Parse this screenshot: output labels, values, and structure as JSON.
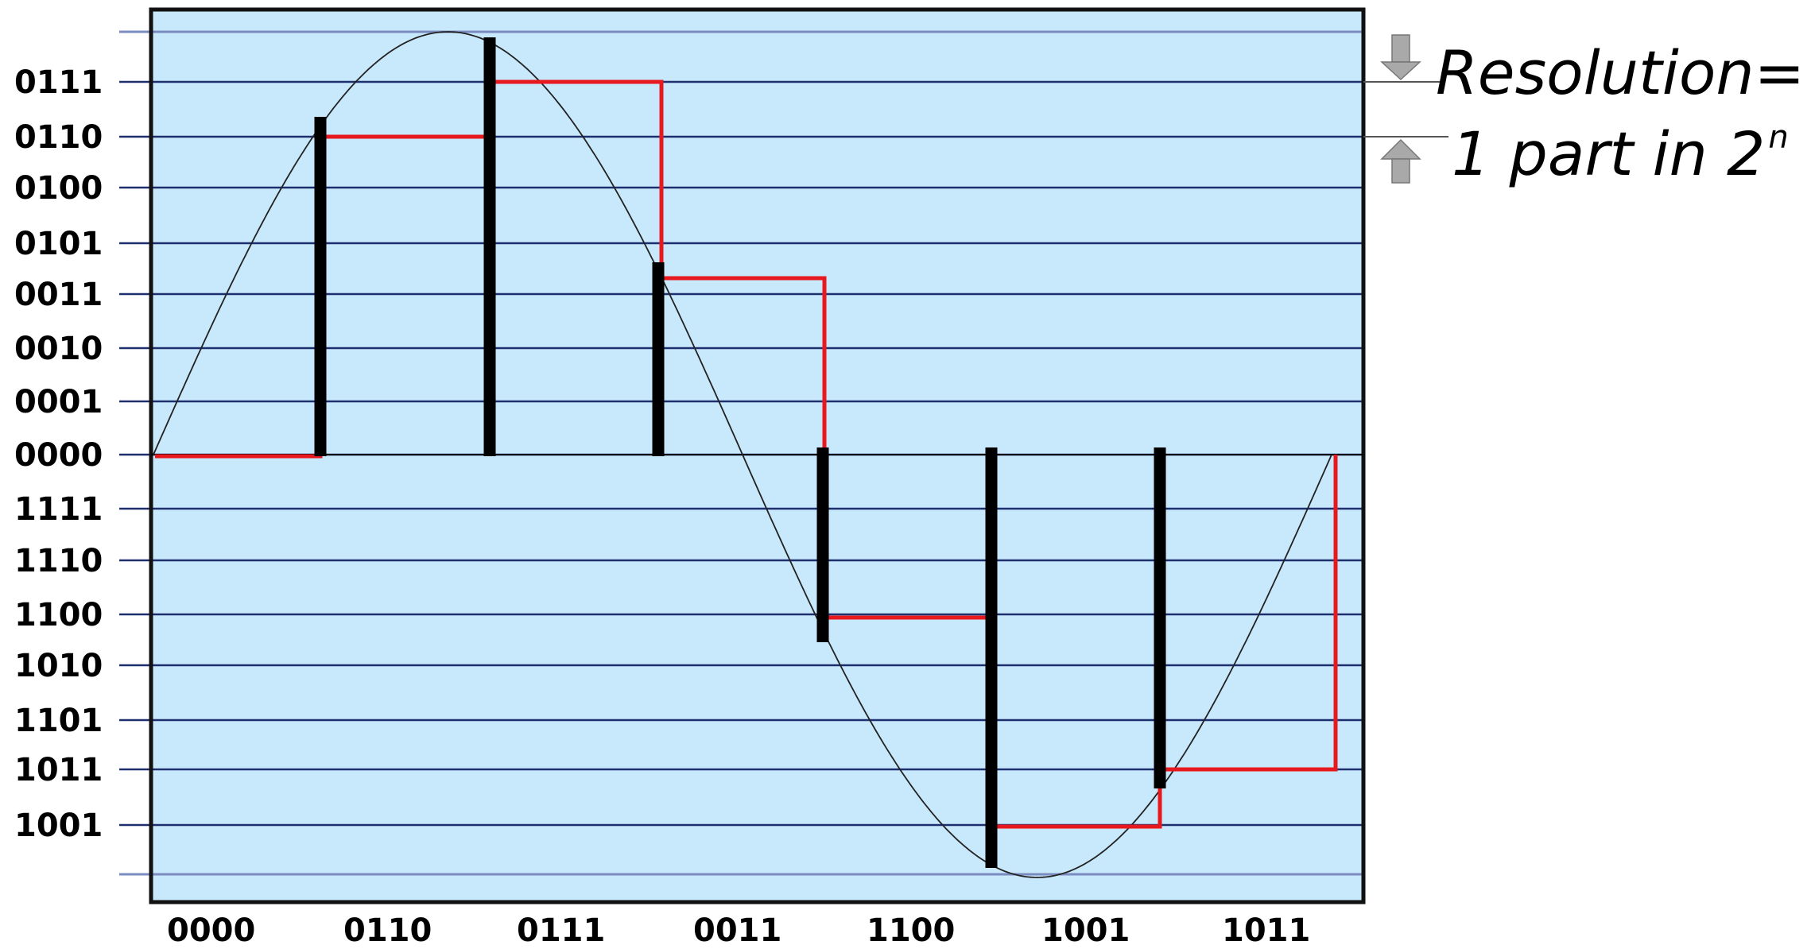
{
  "y_labels": [
    "0111",
    "0110",
    "0100",
    "0101",
    "0011",
    "0010",
    "0001",
    "0000",
    "1111",
    "1110",
    "1100",
    "1010",
    "1101",
    "1011",
    "1001"
  ],
  "x_labels": [
    "0000",
    "0110",
    "0111",
    "0011",
    "1100",
    "1001",
    "1011"
  ],
  "annotation": {
    "line1": "Resolution=",
    "line2": "1 part in 2",
    "superscript": "n"
  },
  "colors": {
    "plot_bg": "#c8e8fb",
    "gridline": "#1e2f6e",
    "gridline_faint": "#7a8cc0",
    "frame": "#111111",
    "sine": "#222222",
    "quantized": "#e8191e",
    "sample_bar": "#000000",
    "arrow": "#a9a9a9"
  },
  "icons": [
    "down-arrow-icon",
    "up-arrow-icon"
  ]
}
